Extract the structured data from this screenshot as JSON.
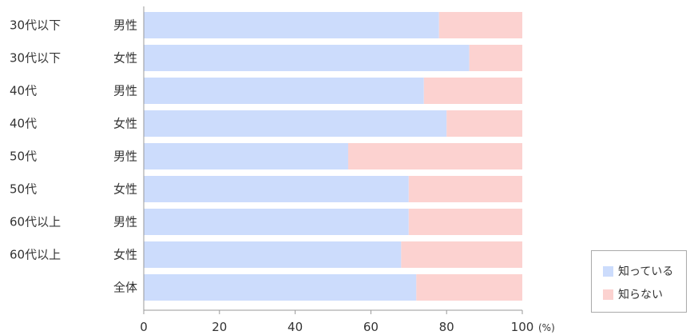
{
  "chart_data": {
    "type": "bar",
    "orientation": "horizontal",
    "stacked": true,
    "categories": [
      {
        "age": "30代以下",
        "gender": "男性"
      },
      {
        "age": "30代以下",
        "gender": "女性"
      },
      {
        "age": "40代",
        "gender": "男性"
      },
      {
        "age": "40代",
        "gender": "女性"
      },
      {
        "age": "50代",
        "gender": "男性"
      },
      {
        "age": "50代",
        "gender": "女性"
      },
      {
        "age": "60代以上",
        "gender": "男性"
      },
      {
        "age": "60代以上",
        "gender": "女性"
      },
      {
        "age": "",
        "gender": "全体"
      }
    ],
    "series": [
      {
        "name": "知っている",
        "color": "#ccdcfc",
        "values": [
          78,
          86,
          74,
          80,
          54,
          70,
          70,
          68,
          72
        ]
      },
      {
        "name": "知らない",
        "color": "#fcd2d0",
        "values": [
          22,
          14,
          26,
          20,
          46,
          30,
          30,
          32,
          28
        ]
      }
    ],
    "xlim": [
      0,
      100
    ],
    "xticks": [
      "0",
      "20",
      "40",
      "60",
      "80",
      "100"
    ],
    "xunit": "(%)",
    "title": "",
    "xlabel": "",
    "ylabel": "",
    "grid": false,
    "legend_position": "bottom-right"
  }
}
